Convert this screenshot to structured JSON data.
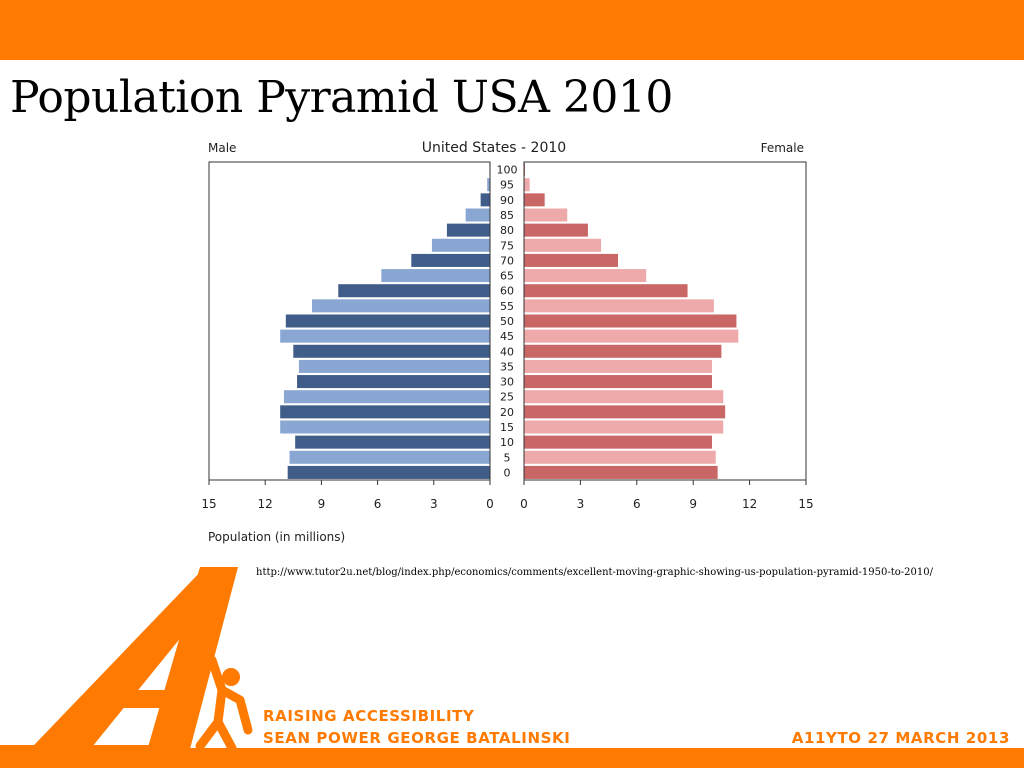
{
  "slide": {
    "title": "Population Pyramid USA 2010",
    "source_url": "http://www.tutor2u.net/blog/index.php/economics/comments/excellent-moving-graphic-showing-us-population-pyramid-1950-to-2010/",
    "footer_line1": "RAISING ACCESSIBILITY",
    "footer_line2": "SEAN POWER GEORGE BATALINSKI",
    "footer_date": "A11YTO 27 MARCH 2013"
  },
  "colors": {
    "accent": "#ff7a00",
    "male_dark": "#405d8a",
    "male_light": "#8aa6d2",
    "female_dark": "#c96666",
    "female_light": "#eeaaaa",
    "footer_text": "#ff7a00"
  },
  "chart_data": {
    "type": "bar",
    "title": "United States - 2010",
    "left_label": "Male",
    "right_label": "Female",
    "xlabel": "Population (in millions)",
    "xlim": [
      0,
      15
    ],
    "xticks": [
      0,
      3,
      6,
      9,
      12,
      15
    ],
    "categories": [
      "0",
      "5",
      "10",
      "15",
      "20",
      "25",
      "30",
      "35",
      "40",
      "45",
      "50",
      "55",
      "60",
      "65",
      "70",
      "75",
      "80",
      "85",
      "90",
      "95",
      "100"
    ],
    "series": [
      {
        "name": "Male",
        "values": [
          10.8,
          10.7,
          10.4,
          11.2,
          11.2,
          11.0,
          10.3,
          10.2,
          10.5,
          11.2,
          10.9,
          9.5,
          8.1,
          5.8,
          4.2,
          3.1,
          2.3,
          1.3,
          0.5,
          0.15,
          0.03
        ]
      },
      {
        "name": "Female",
        "values": [
          10.3,
          10.2,
          10.0,
          10.6,
          10.7,
          10.6,
          10.0,
          10.0,
          10.5,
          11.4,
          11.3,
          10.1,
          8.7,
          6.5,
          5.0,
          4.1,
          3.4,
          2.3,
          1.1,
          0.3,
          0.05
        ]
      }
    ],
    "grid": false,
    "legend": "none"
  }
}
